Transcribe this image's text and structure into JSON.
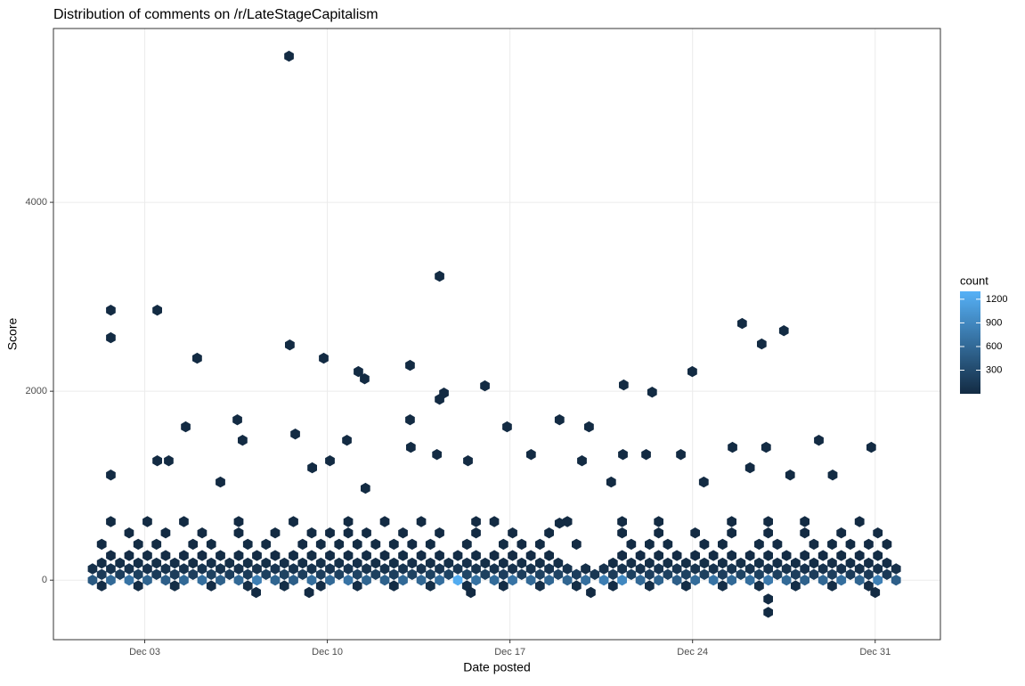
{
  "chart_data": {
    "type": "hexbin",
    "title": "Distribution of comments on /r/LateStageCapitalism",
    "x_label": "Date posted",
    "y_label": "Score",
    "xlim": [
      -0.5,
      33.5
    ],
    "ylim": [
      -630,
      5840
    ],
    "xticks": [
      {
        "value": 3,
        "label": "Dec 03"
      },
      {
        "value": 10,
        "label": "Dec 10"
      },
      {
        "value": 17,
        "label": "Dec 17"
      },
      {
        "value": 24,
        "label": "Dec 24"
      },
      {
        "value": 31,
        "label": "Dec 31"
      }
    ],
    "yticks": [
      0,
      2000,
      4000
    ],
    "grid": true,
    "legend_title": "count",
    "colorlim": [
      1,
      1300
    ],
    "color_low": "#132B43",
    "color_high": "#56B1F7",
    "legend_ticks": [
      300,
      600,
      900,
      1200
    ],
    "rows": [
      {
        "y": 0,
        "x": [
          1.0,
          1.7,
          2.4,
          3.1,
          3.8,
          4.5,
          5.2,
          5.9,
          6.6,
          7.3,
          8.0,
          8.7,
          9.4,
          10.1,
          10.8,
          11.5,
          12.2,
          12.9,
          13.6,
          14.3,
          15.0,
          15.7,
          16.4,
          17.1,
          17.8,
          18.5,
          19.2,
          19.9,
          20.6,
          21.3,
          22.0,
          22.7,
          23.4,
          24.1,
          24.8,
          25.5,
          26.2,
          26.9,
          27.6,
          28.3,
          29.0,
          29.7,
          30.4,
          31.1,
          31.8
        ],
        "count": [
          450,
          600,
          700,
          550,
          500,
          600,
          650,
          520,
          600,
          800,
          560,
          500,
          640,
          600,
          700,
          560,
          520,
          600,
          580,
          650,
          1250,
          680,
          620,
          700,
          600,
          580,
          560,
          650,
          800,
          900,
          600,
          550,
          500,
          620,
          700,
          600,
          650,
          750,
          600,
          520,
          580,
          650,
          560,
          820,
          500
        ]
      },
      {
        "y": -60,
        "x": [
          1.35,
          2.75,
          4.15,
          5.55,
          6.95,
          8.35,
          9.75,
          11.15,
          12.55,
          13.95,
          15.35,
          16.75,
          18.15,
          19.55,
          20.95,
          22.35,
          23.75,
          25.15,
          26.55,
          27.95,
          29.35,
          30.75
        ],
        "count": [
          20,
          25,
          30,
          22,
          28,
          35,
          20,
          30,
          25,
          40,
          30,
          25,
          35,
          28,
          22,
          30,
          25,
          35,
          40,
          28,
          30,
          22
        ]
      },
      {
        "y": 60,
        "x": [
          1.35,
          2.05,
          2.75,
          3.45,
          4.15,
          4.85,
          5.55,
          6.25,
          6.95,
          7.65,
          8.35,
          9.05,
          9.75,
          10.45,
          11.15,
          11.85,
          12.55,
          13.25,
          13.95,
          14.65,
          15.35,
          16.05,
          16.75,
          17.45,
          18.15,
          18.85,
          19.55,
          20.25,
          20.95,
          21.65,
          22.35,
          23.05,
          23.75,
          24.45,
          25.15,
          25.85,
          26.55,
          27.25,
          27.95,
          28.65,
          29.35,
          30.05,
          30.75,
          31.45
        ],
        "count": [
          150,
          180,
          200,
          160,
          170,
          190,
          210,
          180,
          160,
          200,
          220,
          190,
          180,
          210,
          230,
          200,
          190,
          220,
          210,
          240,
          260,
          200,
          190,
          180,
          210,
          230,
          180,
          120,
          170,
          200,
          190,
          210,
          220,
          200,
          190,
          230,
          210,
          200,
          180,
          170,
          190,
          160,
          150,
          140
        ]
      },
      {
        "y": 120,
        "x": [
          1.0,
          1.7,
          2.4,
          3.1,
          3.8,
          4.5,
          5.2,
          5.9,
          6.6,
          7.3,
          8.0,
          8.7,
          9.4,
          10.1,
          10.8,
          11.5,
          12.2,
          12.9,
          13.6,
          14.3,
          15.0,
          15.7,
          16.4,
          17.1,
          17.8,
          18.5,
          19.2,
          19.9,
          20.6,
          21.3,
          22.0,
          22.7,
          23.4,
          24.1,
          24.8,
          25.5,
          26.2,
          26.9,
          27.6,
          28.3,
          29.0,
          29.7,
          30.4,
          31.1,
          31.8
        ],
        "count": [
          60,
          80,
          90,
          70,
          80,
          90,
          100,
          80,
          70,
          90,
          100,
          90,
          80,
          100,
          110,
          90,
          80,
          100,
          90,
          110,
          120,
          90,
          80,
          70,
          90,
          100,
          80,
          40,
          70,
          90,
          80,
          100,
          110,
          90,
          80,
          100,
          90,
          90,
          80,
          70,
          80,
          70,
          60,
          60,
          50
        ]
      },
      {
        "y": 180,
        "x": [
          1.35,
          2.05,
          2.75,
          3.45,
          4.15,
          4.85,
          5.55,
          6.25,
          6.95,
          7.65,
          8.35,
          9.05,
          9.75,
          10.45,
          11.15,
          11.85,
          12.55,
          13.25,
          13.95,
          14.65,
          15.35,
          16.05,
          16.75,
          17.45,
          18.15,
          18.85,
          20.95,
          21.65,
          22.35,
          23.05,
          23.75,
          24.45,
          25.15,
          25.85,
          26.55,
          27.25,
          27.95,
          28.65,
          29.35,
          30.05,
          30.75,
          31.45
        ],
        "count": [
          30,
          40,
          35,
          45,
          40,
          30,
          50,
          40,
          35,
          45,
          50,
          40,
          45,
          55,
          50,
          40,
          45,
          50,
          40,
          45,
          50,
          35,
          40,
          35,
          40,
          30,
          25,
          35,
          40,
          35,
          40,
          45,
          35,
          40,
          45,
          40,
          35,
          30,
          35,
          30,
          25,
          20
        ]
      },
      {
        "y": 260,
        "x": [
          1.7,
          2.4,
          3.1,
          3.8,
          4.5,
          5.2,
          5.9,
          6.6,
          7.3,
          8.0,
          8.7,
          9.4,
          10.1,
          10.8,
          11.5,
          12.2,
          12.9,
          13.6,
          14.3,
          15.0,
          15.7,
          16.4,
          17.1,
          17.8,
          18.5,
          21.3,
          22.0,
          22.7,
          23.4,
          24.1,
          24.8,
          25.5,
          26.2,
          26.9,
          27.6,
          28.3,
          29.0,
          29.7,
          30.4,
          31.1
        ],
        "count": [
          12,
          15,
          18,
          20,
          15,
          12,
          18,
          20,
          15,
          12,
          20,
          18,
          22,
          25,
          20,
          15,
          18,
          22,
          20,
          25,
          18,
          15,
          12,
          15,
          10,
          12,
          15,
          18,
          12,
          15,
          18,
          20,
          15,
          18,
          12,
          15,
          12,
          10,
          12,
          8
        ]
      },
      {
        "y": 380,
        "x": [
          1.35,
          2.75,
          3.45,
          4.85,
          5.55,
          6.95,
          7.65,
          9.05,
          9.75,
          10.45,
          11.15,
          11.85,
          12.55,
          13.25,
          13.95,
          15.35,
          16.75,
          17.45,
          18.15,
          19.55,
          21.65,
          22.35,
          23.05,
          24.45,
          25.15,
          26.55,
          27.25,
          28.65,
          29.35,
          30.05,
          30.75,
          31.45
        ],
        "count": [
          5,
          6,
          8,
          5,
          7,
          6,
          8,
          5,
          9,
          7,
          8,
          6,
          7,
          5,
          8,
          6,
          7,
          5,
          6,
          4,
          5,
          6,
          7,
          5,
          6,
          8,
          6,
          5,
          7,
          4,
          5,
          4
        ]
      },
      {
        "y": 500,
        "x": [
          2.4,
          3.8,
          5.2,
          6.6,
          8.0,
          9.4,
          10.1,
          10.8,
          11.5,
          12.9,
          14.3,
          15.7,
          17.1,
          18.5,
          21.3,
          22.7,
          24.1,
          25.5,
          26.9,
          28.3,
          29.7,
          31.1
        ],
        "count": [
          3,
          2,
          4,
          3,
          2,
          4,
          3,
          5,
          3,
          4,
          3,
          2,
          3,
          2,
          3,
          2,
          3,
          2,
          4,
          3,
          2,
          2
        ]
      },
      {
        "y": 620,
        "x": [
          1.7,
          3.1,
          4.5,
          6.6,
          8.7,
          10.8,
          12.2,
          13.6,
          15.7,
          16.4,
          19.2,
          21.3,
          22.7,
          25.5,
          26.9,
          28.3,
          30.4
        ],
        "count": [
          2,
          1,
          1,
          2,
          1,
          2,
          1,
          2,
          1,
          1,
          1,
          2,
          1,
          1,
          2,
          1,
          1
        ]
      }
    ],
    "outliers": {
      "x": [
        8.53,
        1.7,
        1.7,
        3.48,
        8.56,
        5.01,
        9.86,
        11.19,
        11.43,
        13.17,
        14.3,
        14.47,
        14.3,
        16.04,
        25.9,
        26.65,
        27.5,
        23.99,
        21.36,
        22.45,
        1.7,
        3.48,
        3.92,
        4.57,
        6.55,
        6.75,
        8.77,
        10.75,
        13.17,
        13.2,
        16.89,
        18.9,
        20.03,
        17.81,
        21.33,
        22.22,
        23.55,
        25.53,
        26.82,
        28.84,
        30.85,
        5.9,
        9.42,
        10.1,
        11.46,
        19.76,
        20.88,
        24.43,
        26.2,
        29.37,
        27.74,
        15.39,
        14.2,
        18.9,
        7.27,
        9.3,
        15.5,
        20.1,
        31.0,
        26.9,
        26.9
      ],
      "y": [
        5547,
        2858,
        2566,
        2858,
        2490,
        2349,
        2349,
        2208,
        2132,
        2274,
        3217,
        1981,
        1915,
        2057,
        2717,
        2500,
        2641,
        2208,
        2066,
        1990,
        1113,
        1264,
        1264,
        1623,
        1698,
        1481,
        1547,
        1481,
        1698,
        1406,
        1623,
        1698,
        1623,
        1330,
        1330,
        1330,
        1330,
        1406,
        1406,
        1481,
        1406,
        1038,
        1189,
        1264,
        972,
        1264,
        1038,
        1038,
        1189,
        1113,
        1113,
        1264,
        1330,
        604,
        -130,
        -130,
        -130,
        -130,
        -130,
        -200,
        -340
      ],
      "count": [
        1,
        1,
        1,
        1,
        1,
        1,
        1,
        1,
        1,
        1,
        1,
        1,
        1,
        1,
        1,
        1,
        1,
        1,
        1,
        1,
        1,
        1,
        1,
        1,
        1,
        1,
        1,
        1,
        1,
        1,
        1,
        1,
        1,
        1,
        1,
        1,
        1,
        1,
        1,
        1,
        1,
        1,
        1,
        1,
        1,
        1,
        1,
        1,
        1,
        1,
        1,
        1,
        1,
        1,
        2,
        2,
        1,
        2,
        1,
        1,
        1
      ]
    }
  }
}
